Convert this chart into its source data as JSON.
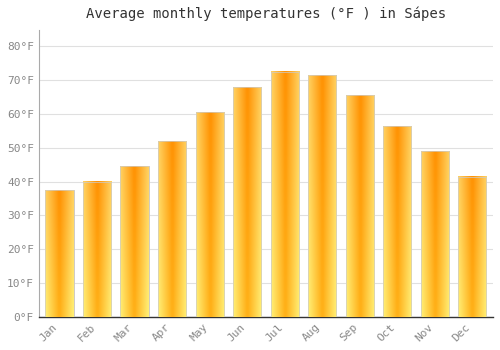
{
  "title": "Average monthly temperatures (°F ) in Sápes",
  "months": [
    "Jan",
    "Feb",
    "Mar",
    "Apr",
    "May",
    "Jun",
    "Jul",
    "Aug",
    "Sep",
    "Oct",
    "Nov",
    "Dec"
  ],
  "values": [
    37.5,
    40.0,
    44.5,
    52.0,
    60.5,
    68.0,
    72.5,
    71.5,
    65.5,
    56.5,
    49.0,
    41.5
  ],
  "bar_color_center": "#FFA500",
  "bar_color_edge": "#FFD070",
  "background_color": "#FFFFFF",
  "plot_bg_color": "#FFFFFF",
  "grid_color": "#E0E0E0",
  "spine_color": "#AAAAAA",
  "bar_edge_color": "#CCCCCC",
  "ylim": [
    0,
    85
  ],
  "yticks": [
    0,
    10,
    20,
    30,
    40,
    50,
    60,
    70,
    80
  ],
  "ylabel_suffix": "°F",
  "title_fontsize": 10,
  "tick_fontsize": 8,
  "title_color": "#333333",
  "tick_color": "#888888"
}
